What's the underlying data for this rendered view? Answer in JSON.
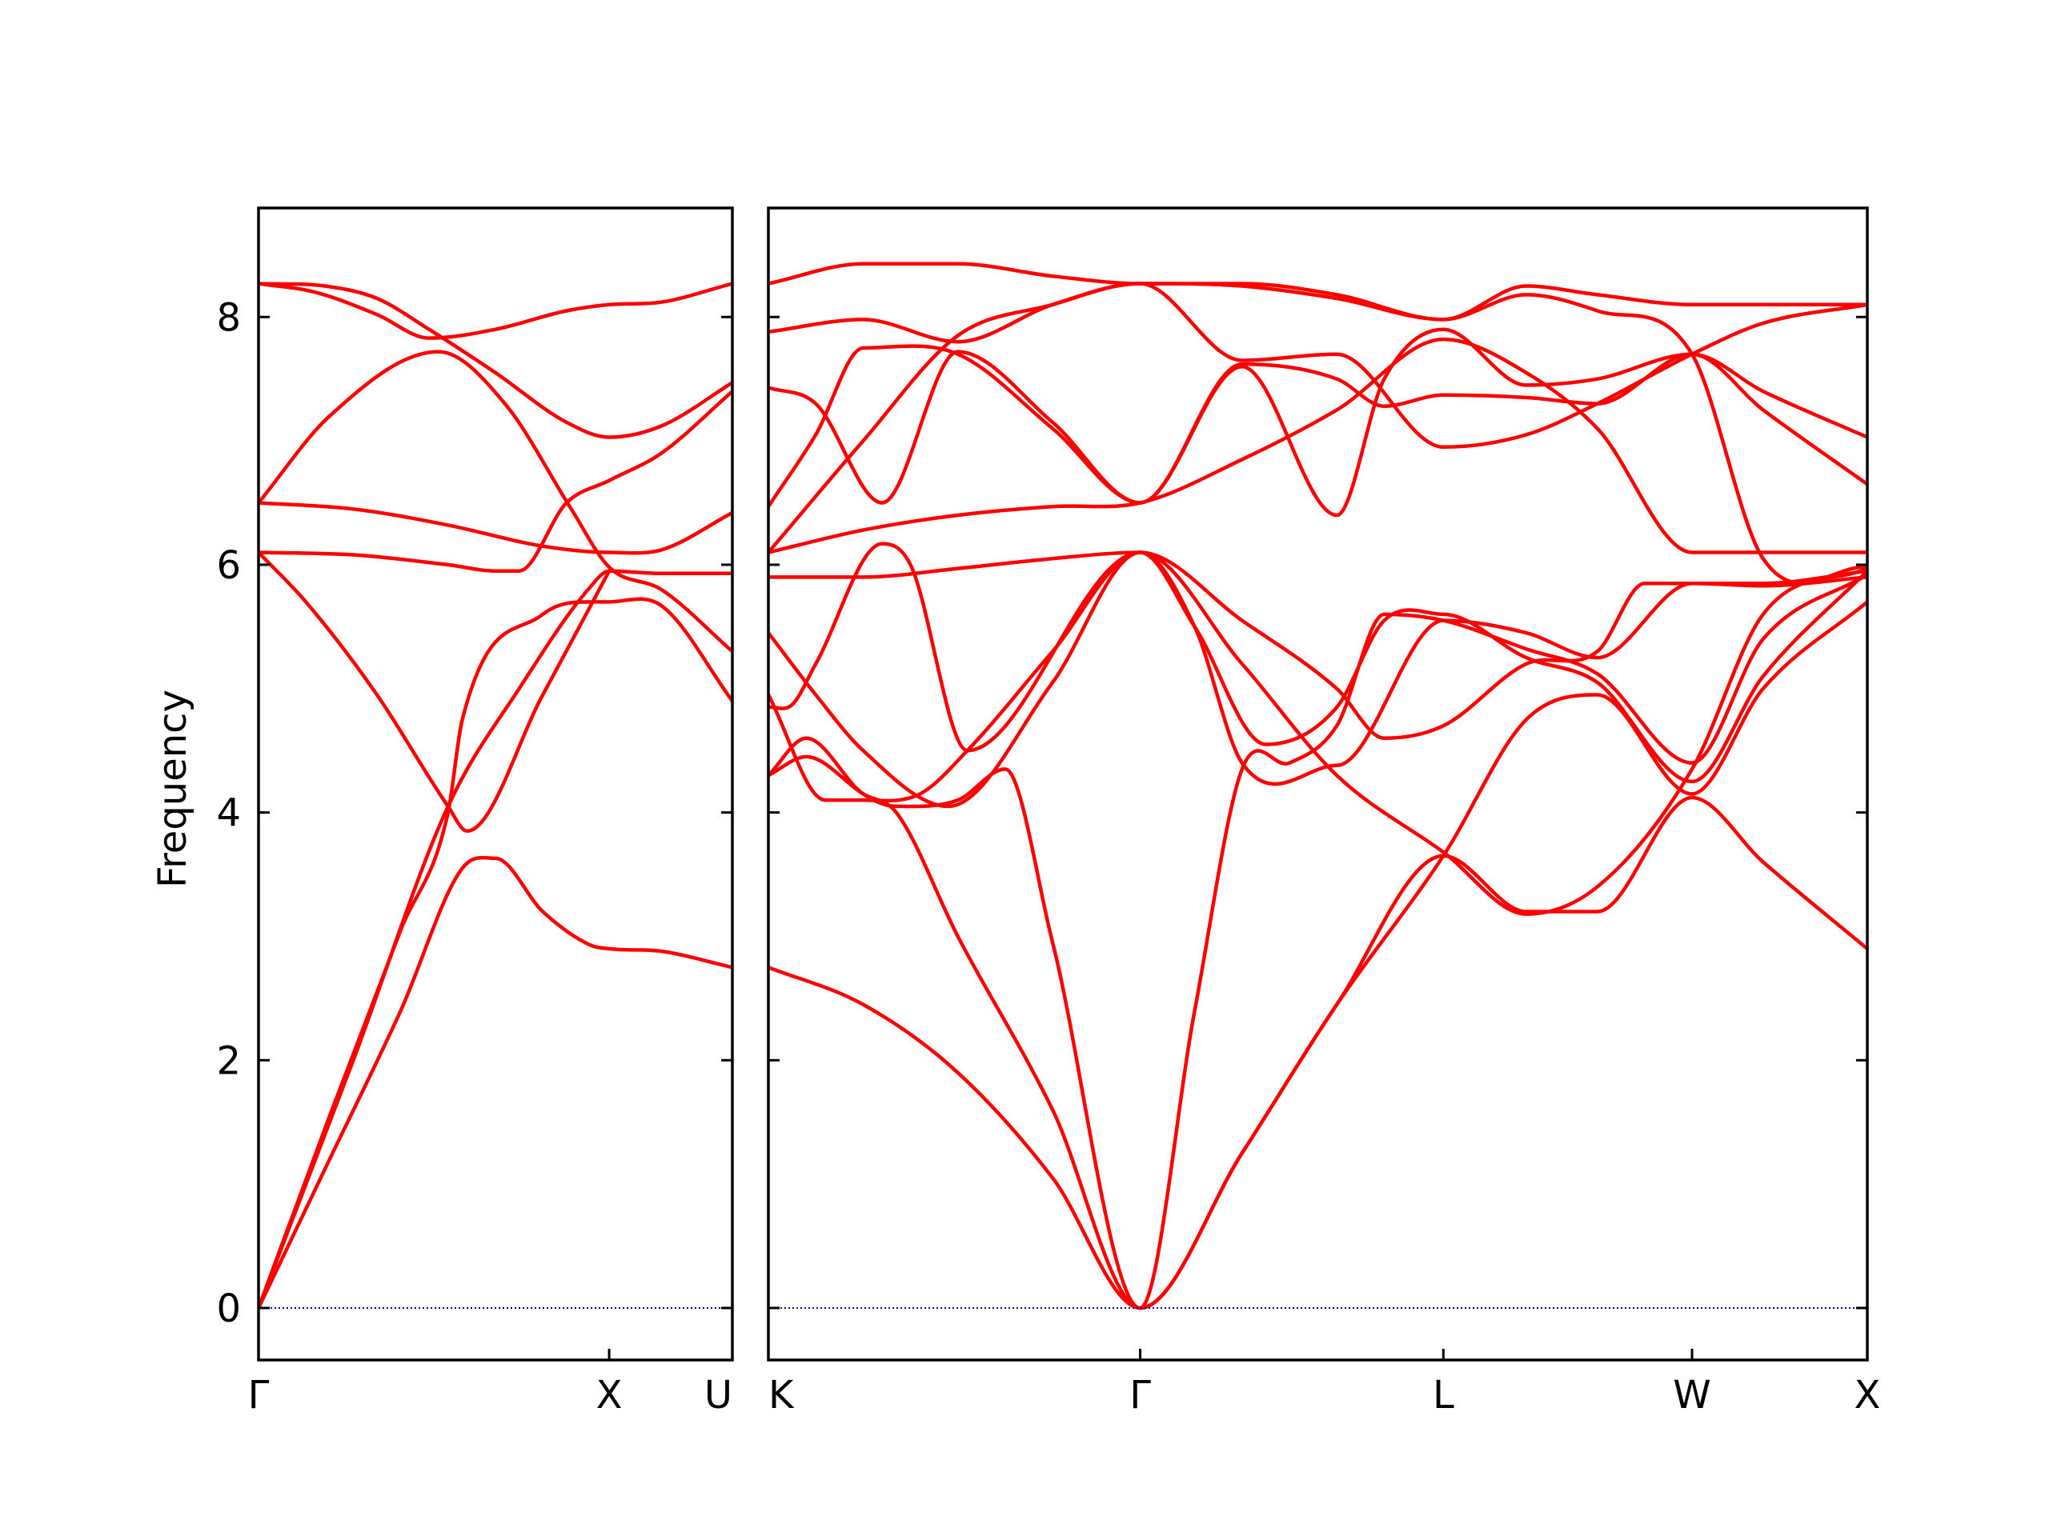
{
  "chart_data": {
    "type": "line",
    "ylabel": "Frequency",
    "ylim": [
      -0.42,
      8.88
    ],
    "yticks": [
      0,
      2,
      4,
      6,
      8
    ],
    "grid": false,
    "colors": {
      "bands": "#ff0000",
      "zero_line": "#0000aa",
      "axes": "#000000"
    },
    "panels": [
      {
        "xrange": [
          0,
          1
        ],
        "ticks": [
          {
            "pos": 0,
            "label": "Γ"
          },
          {
            "pos": 0.74,
            "label": "X"
          },
          {
            "pos": 1,
            "label": "U"
          }
        ],
        "series": [
          {
            "x": [
              0,
              0.15,
              0.3,
              0.43,
              0.5,
              0.6,
              0.7,
              0.74,
              0.85,
              1
            ],
            "y": [
              0,
              1.2,
              2.4,
              3.55,
              3.63,
              3.2,
              2.93,
              2.9,
              2.88,
              2.75
            ]
          },
          {
            "x": [
              0,
              0.15,
              0.3,
              0.4,
              0.43,
              0.6,
              0.7,
              0.74,
              0.85,
              1
            ],
            "y": [
              0,
              1.55,
              3.05,
              4.0,
              4.75,
              5.6,
              5.7,
              5.7,
              5.67,
              4.9
            ]
          },
          {
            "x": [
              0,
              0.1,
              0.25,
              0.4,
              0.44,
              0.6,
              0.74
            ],
            "y": [
              6.1,
              5.7,
              4.95,
              4.05,
              3.85,
              4.95,
              5.95
            ]
          },
          {
            "x": [
              0,
              0.2,
              0.4,
              0.55,
              0.7,
              0.74,
              0.85,
              1
            ],
            "y": [
              0,
              2.0,
              4.05,
              5.0,
              5.82,
              5.95,
              5.93,
              5.93
            ]
          },
          {
            "x": [
              0,
              0.2,
              0.4,
              0.5,
              0.55,
              0.65,
              0.74,
              0.85,
              1
            ],
            "y": [
              6.1,
              6.08,
              6.0,
              5.95,
              5.95,
              6.5,
              6.68,
              6.9,
              7.4
            ]
          },
          {
            "x": [
              0,
              0.2,
              0.4,
              0.6,
              0.74,
              0.85,
              1
            ],
            "y": [
              6.5,
              6.45,
              6.32,
              6.15,
              6.1,
              6.12,
              6.42
            ]
          },
          {
            "x": [
              0,
              0.15,
              0.38,
              0.52,
              0.66,
              0.74,
              0.85,
              1
            ],
            "y": [
              6.5,
              7.2,
              7.72,
              7.3,
              6.45,
              5.98,
              5.8,
              5.3
            ]
          },
          {
            "x": [
              0,
              0.12,
              0.25,
              0.36,
              0.5,
              0.65,
              0.74,
              0.85,
              1
            ],
            "y": [
              8.27,
              8.2,
              8.02,
              7.83,
              7.9,
              8.05,
              8.1,
              8.12,
              8.27
            ]
          },
          {
            "x": [
              0,
              0.14,
              0.25,
              0.36,
              0.5,
              0.65,
              0.74,
              0.85,
              1
            ],
            "y": [
              8.27,
              8.25,
              8.15,
              7.9,
              7.55,
              7.15,
              7.03,
              7.12,
              7.47
            ]
          },
          {
            "x": [
              0,
              0.5,
              0.74,
              0.85,
              1
            ],
            "y": [
              0,
              0,
              0,
              0,
              0
            ]
          }
        ]
      },
      {
        "xrange": [
          0,
          2.32
        ],
        "ticks": [
          {
            "pos": 0,
            "label": "K"
          },
          {
            "pos": 0.785,
            "label": "Γ"
          },
          {
            "pos": 1.425,
            "label": "L"
          },
          {
            "pos": 1.95,
            "label": "W"
          },
          {
            "pos": 2.32,
            "label": "X"
          }
        ],
        "series": [
          {
            "x": [
              0,
              0.2,
              0.4,
              0.6,
              0.785,
              1.0,
              1.2,
              1.425,
              1.6,
              1.75,
              1.95,
              2.1,
              2.32
            ],
            "y": [
              2.75,
              2.45,
              1.9,
              1.05,
              0,
              1.25,
              2.45,
              3.65,
              3.2,
              3.2,
              4.12,
              3.6,
              2.9
            ]
          },
          {
            "x": [
              0,
              0.08,
              0.2,
              0.27,
              0.4,
              0.6,
              0.785,
              1.0,
              1.2,
              1.425,
              1.6,
              1.75,
              1.95,
              2.1,
              2.32
            ],
            "y": [
              4.3,
              4.45,
              4.15,
              4.0,
              3.0,
              1.6,
              0,
              1.25,
              2.45,
              3.65,
              4.75,
              4.95,
              4.15,
              5.0,
              5.7
            ]
          },
          {
            "x": [
              0,
              0.08,
              0.2,
              0.27,
              0.4,
              0.5,
              0.6,
              0.785,
              0.9,
              1.0,
              1.1,
              1.2,
              1.3,
              1.425,
              1.6,
              1.75,
              1.95,
              2.1,
              2.32
            ],
            "y": [
              4.3,
              4.6,
              4.15,
              4.05,
              4.1,
              4.35,
              2.95,
              0,
              2.4,
              4.35,
              4.4,
              4.7,
              5.6,
              5.55,
              5.32,
              5.12,
              4.4,
              5.4,
              5.92
            ]
          },
          {
            "x": [
              0,
              0.12,
              0.2,
              0.32,
              0.42,
              0.6,
              0.785,
              0.9,
              1.05,
              1.2,
              1.3,
              1.425,
              1.6,
              1.75,
              1.95,
              2.1,
              2.32
            ],
            "y": [
              4.95,
              4.1,
              4.1,
              4.15,
              4.5,
              5.3,
              6.1,
              5.5,
              4.55,
              4.85,
              5.55,
              5.6,
              5.25,
              5.05,
              4.25,
              5.1,
              5.95
            ]
          },
          {
            "x": [
              0,
              0.1,
              0.2,
              0.38,
              0.6,
              0.785,
              1.0,
              1.2,
              1.425,
              1.6,
              1.75,
              1.95,
              2.1,
              2.32
            ],
            "y": [
              5.45,
              4.95,
              4.5,
              4.05,
              5.05,
              6.1,
              5.2,
              4.3,
              3.68,
              3.18,
              3.4,
              4.35,
              5.6,
              5.97
            ]
          },
          {
            "x": [
              0,
              0.05,
              0.1,
              0.24,
              0.3,
              0.42,
              0.785,
              0.9,
              1.0,
              1.2,
              1.425,
              1.6,
              1.75,
              1.95,
              2.1,
              2.32
            ],
            "y": [
              4.85,
              4.87,
              5.2,
              6.17,
              6.0,
              4.5,
              6.1,
              5.5,
              4.4,
              4.38,
              5.55,
              5.45,
              5.25,
              5.85,
              5.85,
              5.95
            ]
          },
          {
            "x": [
              0,
              0.2,
              0.4,
              0.6,
              0.785,
              1.0,
              1.2,
              1.3,
              1.425,
              1.6,
              1.75,
              1.85,
              1.95,
              2.1,
              2.32
            ],
            "y": [
              5.9,
              5.9,
              5.97,
              6.05,
              6.1,
              5.55,
              5.0,
              4.6,
              4.7,
              5.2,
              5.3,
              5.85,
              5.85,
              5.83,
              5.9
            ]
          },
          {
            "x": [
              0,
              0.2,
              0.4,
              0.6,
              0.785,
              1.0,
              1.2,
              1.425,
              1.6,
              1.75,
              1.95,
              2.1,
              2.32
            ],
            "y": [
              6.1,
              6.28,
              6.4,
              6.47,
              6.5,
              6.85,
              7.25,
              7.82,
              7.55,
              7.1,
              6.1,
              6.1,
              6.1
            ]
          },
          {
            "x": [
              0,
              0.1,
              0.2,
              0.4,
              0.6,
              0.785,
              1.0,
              1.2,
              1.3,
              1.425,
              1.6,
              1.75,
              1.95,
              2.1,
              2.32
            ],
            "y": [
              6.47,
              7.05,
              7.75,
              7.7,
              7.1,
              6.5,
              7.6,
              6.4,
              7.5,
              7.9,
              7.45,
              7.5,
              7.7,
              7.25,
              6.65
            ]
          },
          {
            "x": [
              0,
              0.1,
              0.24,
              0.4,
              0.6,
              0.785,
              1.0,
              1.2,
              1.3,
              1.425,
              1.6,
              1.75,
              1.95,
              2.1,
              2.32
            ],
            "y": [
              7.43,
              7.3,
              6.5,
              7.72,
              7.15,
              6.5,
              7.62,
              7.5,
              7.28,
              7.37,
              7.35,
              7.3,
              7.7,
              7.4,
              7.03
            ]
          },
          {
            "x": [
              0,
              0.2,
              0.4,
              0.6,
              0.785,
              1.0,
              1.2,
              1.425,
              1.6,
              1.75,
              1.95,
              2.1,
              2.32
            ],
            "y": [
              6.1,
              7.0,
              7.85,
              8.1,
              8.27,
              7.65,
              7.7,
              6.95,
              7.05,
              7.3,
              7.7,
              7.95,
              8.1
            ]
          },
          {
            "x": [
              0,
              0.2,
              0.4,
              0.6,
              0.785,
              1.0,
              1.2,
              1.425,
              1.6,
              1.75,
              1.95,
              2.1,
              2.32
            ],
            "y": [
              7.88,
              7.98,
              7.8,
              8.1,
              8.27,
              8.25,
              8.15,
              7.98,
              8.18,
              8.05,
              7.7,
              6.05,
              5.98
            ]
          },
          {
            "x": [
              0,
              0.2,
              0.4,
              0.6,
              0.785,
              1.0,
              1.2,
              1.425,
              1.6,
              1.75,
              1.95,
              2.1,
              2.32
            ],
            "y": [
              8.27,
              8.43,
              8.43,
              8.33,
              8.27,
              8.27,
              8.18,
              7.98,
              8.25,
              8.18,
              8.1,
              8.1,
              8.1
            ]
          },
          {
            "x": [
              0,
              0.785,
              1.425,
              1.95,
              2.32
            ],
            "y": [
              0,
              0,
              0,
              0,
              0
            ]
          }
        ]
      }
    ]
  }
}
